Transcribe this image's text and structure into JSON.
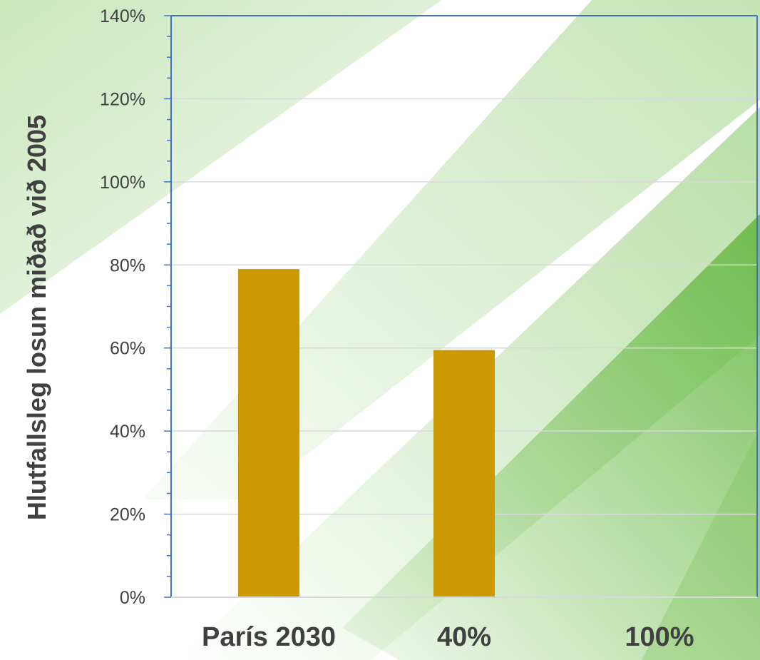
{
  "chart_data": {
    "type": "bar",
    "title": "",
    "xlabel": "",
    "ylabel": "Hlutfallsleg losun miðað við 2005",
    "categories": [
      "París 2030",
      "40%",
      "100%"
    ],
    "values": [
      79,
      59.5,
      0
    ],
    "value_format": "percent",
    "ylim": [
      0,
      140
    ],
    "y_ticks": [
      0,
      20,
      40,
      60,
      80,
      100,
      120,
      140
    ],
    "y_tick_labels": [
      "0%",
      "20%",
      "40%",
      "60%",
      "80%",
      "100%",
      "120%",
      "140%"
    ],
    "grid": true,
    "legend": "none",
    "colors": {
      "bar": "#CC9900",
      "axis": "#4472C4",
      "gridline": "#D9D9D9",
      "text": "#404040",
      "background_accent": "#7DC45D"
    }
  }
}
